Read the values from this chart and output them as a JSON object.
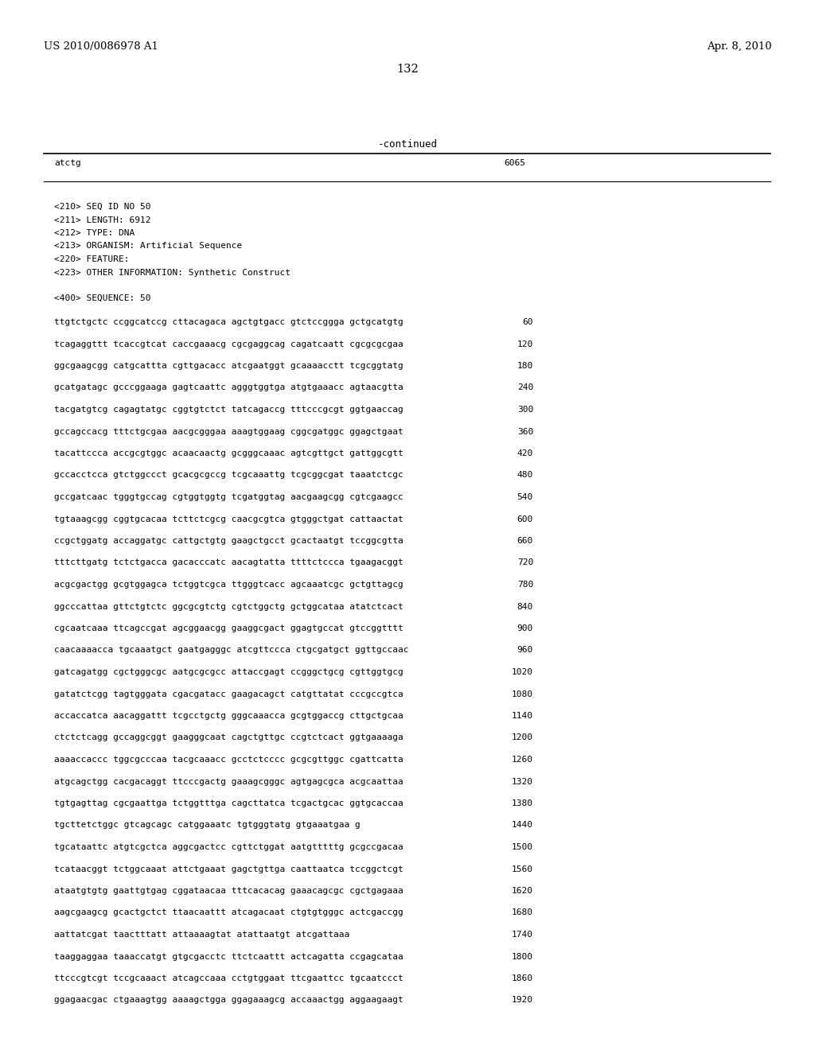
{
  "header_left": "US 2010/0086978 A1",
  "header_right": "Apr. 8, 2010",
  "page_number": "132",
  "continued_label": "-continued",
  "last_seq_text": "atctg",
  "last_seq_num": "6065",
  "metadata": [
    "<210> SEQ ID NO 50",
    "<211> LENGTH: 6912",
    "<212> TYPE: DNA",
    "<213> ORGANISM: Artificial Sequence",
    "<220> FEATURE:",
    "<223> OTHER INFORMATION: Synthetic Construct"
  ],
  "sequence_header": "<400> SEQUENCE: 50",
  "sequence_lines": [
    [
      "ttgtctgctc ccggcatccg cttacagaca agctgtgacc gtctccggga gctgcatgtg",
      "60"
    ],
    [
      "tcagaggttt tcaccgtcat caccgaaacg cgcgaggcag cagatcaatt cgcgcgcgaa",
      "120"
    ],
    [
      "ggcgaagcgg catgcattta cgttgacacc atcgaatggt gcaaaacctt tcgcggtatg",
      "180"
    ],
    [
      "gcatgatagc gcccggaaga gagtcaattc agggtggtga atgtgaaacc agtaacgtta",
      "240"
    ],
    [
      "tacgatgtcg cagagtatgc cggtgtctct tatcagaccg tttcccgcgt ggtgaaccag",
      "300"
    ],
    [
      "gccagccacg tttctgcgaa aacgcgggaa aaagtggaag cggcgatggc ggagctgaat",
      "360"
    ],
    [
      "tacattccca accgcgtggc acaacaactg gcgggcaaac agtcgttgct gattggcgtt",
      "420"
    ],
    [
      "gccacctcca gtctggccct gcacgcgccg tcgcaaattg tcgcggcgat taaatctcgc",
      "480"
    ],
    [
      "gccgatcaac tgggtgccag cgtggtggtg tcgatggtag aacgaagcgg cgtcgaagcc",
      "540"
    ],
    [
      "tgtaaagcgg cggtgcacaa tcttctcgcg caacgcgtca gtgggctgat cattaactat",
      "600"
    ],
    [
      "ccgctggatg accaggatgc cattgctgtg gaagctgcct gcactaatgt tccggcgtta",
      "660"
    ],
    [
      "tttcttgatg tctctgacca gacacccatc aacagtatta ttttctccca tgaagacggt",
      "720"
    ],
    [
      "acgcgactgg gcgtggagca tctggtcgca ttgggtcacc agcaaatcgc gctgttagcg",
      "780"
    ],
    [
      "ggcccattaa gttctgtctc ggcgcgtctg cgtctggctg gctggcataa atatctcact",
      "840"
    ],
    [
      "cgcaatcaaa ttcagccgat agcggaacgg gaaggcgact ggagtgccat gtccggtttt",
      "900"
    ],
    [
      "caacaaaacca tgcaaatgct gaatgagggc atcgttccca ctgcgatgct ggttgccaac",
      "960"
    ],
    [
      "gatcagatgg cgctgggcgc aatgcgcgcc attaccgagt ccgggctgcg cgttggtgcg",
      "1020"
    ],
    [
      "gatatctcgg tagtgggata cgacgatacc gaagacagct catgttatat cccgccgtca",
      "1080"
    ],
    [
      "accaccatca aacaggattt tcgcctgctg gggcaaacca gcgtggaccg cttgctgcaa",
      "1140"
    ],
    [
      "ctctctcagg gccaggcggt gaagggcaat cagctgttgc ccgtctcact ggtgaaaaga",
      "1200"
    ],
    [
      "aaaaccaccc tggcgcccaa tacgcaaacc gcctctcccc gcgcgttggc cgattcatta",
      "1260"
    ],
    [
      "atgcagctgg cacgacaggt ttcccgactg gaaagcgggc agtgagcgca acgcaattaa",
      "1320"
    ],
    [
      "tgtgagttag cgcgaattga tctggtttga cagcttatca tcgactgcac ggtgcaccaa",
      "1380"
    ],
    [
      "tgcttetctggc gtcagcagc catggaaatc tgtgggtatg gtgaaatgaa g",
      "1440"
    ],
    [
      "tgcataattc atgtcgctca aggcgactcc cgttctggat aatgtttttg gcgccgacaa",
      "1500"
    ],
    [
      "tcataacggt tctggcaaat attctgaaat gagctgttga caattaatca tccggctcgt",
      "1560"
    ],
    [
      "ataatgtgtg gaattgtgag cggataacaa tttcacacag gaaacagcgc cgctgagaaa",
      "1620"
    ],
    [
      "aagcgaagcg gcactgctct ttaacaattt atcagacaat ctgtgtgggc actcgaccgg",
      "1680"
    ],
    [
      "aattatcgat taactttatt attaaaagtat atattaatgt atcgattaaa",
      "1740"
    ],
    [
      "taaggaggaa taaaccatgt gtgcgacctc ttctcaattt actcagatta ccgagcataa",
      "1800"
    ],
    [
      "ttcccgtcgt tccgcaaact atcagccaaa cctgtggaat ttcgaattcc tgcaatccct",
      "1860"
    ],
    [
      "ggagaacgac ctgaaagtgg aaaagctgga ggagaaagcg accaaactgg aggaagaagt",
      "1920"
    ]
  ],
  "font_size_header": 9.5,
  "font_size_page": 10.5,
  "font_size_mono": 8.0,
  "font_size_continued": 9.0
}
